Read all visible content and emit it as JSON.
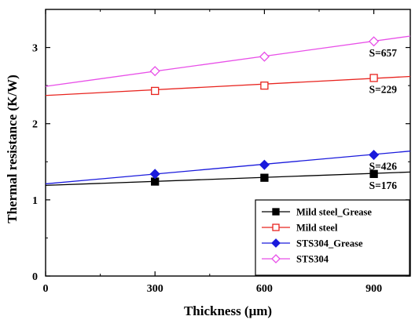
{
  "chart_data": {
    "type": "line",
    "title": "",
    "xlabel": "Thickness (μm)",
    "ylabel": "Thermal resistance (K/W)",
    "xlim": [
      0,
      1000
    ],
    "ylim": [
      0,
      3.5
    ],
    "xticks": [
      0,
      300,
      600,
      900
    ],
    "yticks": [
      0,
      1,
      2,
      3
    ],
    "grid": false,
    "legend_position": "bottom-right",
    "series": [
      {
        "name": "Mild steel_Grease",
        "marker": "filled-square",
        "color": "#000000",
        "x": [
          300,
          600,
          900
        ],
        "y": [
          1.24,
          1.29,
          1.34
        ],
        "fit": {
          "x": [
            0,
            1000
          ],
          "y": [
            1.19,
            1.365
          ]
        },
        "annotation": "S=176"
      },
      {
        "name": "Mild steel",
        "marker": "open-square",
        "color": "#e8241f",
        "x": [
          300,
          600,
          900
        ],
        "y": [
          2.43,
          2.5,
          2.6
        ],
        "fit": {
          "x": [
            0,
            1000
          ],
          "y": [
            2.37,
            2.62
          ]
        },
        "annotation": "S=229"
      },
      {
        "name": "STS304_Grease",
        "marker": "filled-diamond",
        "color": "#1a1adc",
        "x": [
          300,
          600,
          900
        ],
        "y": [
          1.34,
          1.46,
          1.59
        ],
        "fit": {
          "x": [
            0,
            1000
          ],
          "y": [
            1.21,
            1.64
          ]
        },
        "annotation": "S=426"
      },
      {
        "name": "STS304",
        "marker": "open-diamond",
        "color": "#e84fe8",
        "x": [
          300,
          600,
          900
        ],
        "y": [
          2.69,
          2.88,
          3.08
        ],
        "fit": {
          "x": [
            0,
            1000
          ],
          "y": [
            2.49,
            3.15
          ]
        },
        "annotation": "S=657"
      }
    ]
  }
}
